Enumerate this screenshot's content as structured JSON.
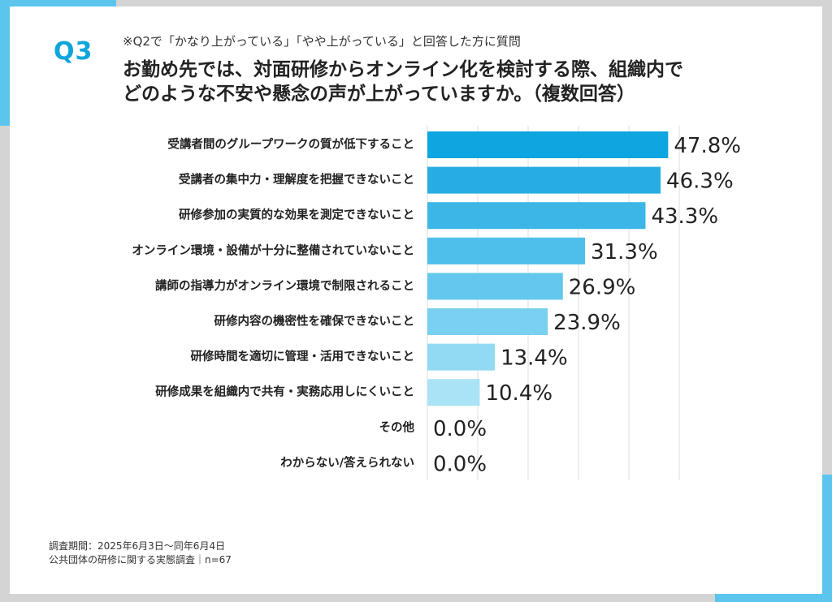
{
  "question": {
    "label": "Q3",
    "note": "※Q2で「かなり上がっている」「やや上がっている」と回答した方に質問",
    "line1": "お勤め先では、対面研修からオンライン化を検討する際、組織内で",
    "line2": "どのような不安や懸念の声が上がっていますか。（複数回答）"
  },
  "chart_data": {
    "type": "bar",
    "orientation": "horizontal",
    "categories": [
      "受講者間のグループワークの質が低下すること",
      "受講者の集中力・理解度を把握できないこと",
      "研修参加の実質的な効果を測定できないこと",
      "オンライン環境・設備が十分に整備されていないこと",
      "講師の指導力がオンライン環境で制限されること",
      "研修内容の機密性を確保できないこと",
      "研修時間を適切に管理・活用できないこと",
      "研修成果を組織内で共有・実務応用しにくいこと",
      "その他",
      "わからない/答えられない"
    ],
    "values": [
      47.8,
      46.3,
      43.3,
      31.3,
      26.9,
      23.9,
      13.4,
      10.4,
      0.0,
      0.0
    ],
    "value_labels": [
      "47.8%",
      "46.3%",
      "43.3%",
      "31.3%",
      "26.9%",
      "23.9%",
      "13.4%",
      "10.4%",
      "0.0%",
      "0.0%"
    ],
    "bar_colors": [
      "#0ea5e0",
      "#28ade2",
      "#3cb6e6",
      "#4ebfea",
      "#64c8ee",
      "#79d0f0",
      "#92d9f3",
      "#abe3f6",
      "#bfe9f7",
      "#bfe9f7"
    ],
    "xlim": [
      0,
      50
    ],
    "grid": true
  },
  "footer": {
    "line1": "調査期間：2025年6月3日～同年6月4日",
    "line2": "公共団体の研修に関する実態調査｜n=67"
  },
  "colors": {
    "accent": "#5bc5ee",
    "question_label": "#0ea5db"
  }
}
